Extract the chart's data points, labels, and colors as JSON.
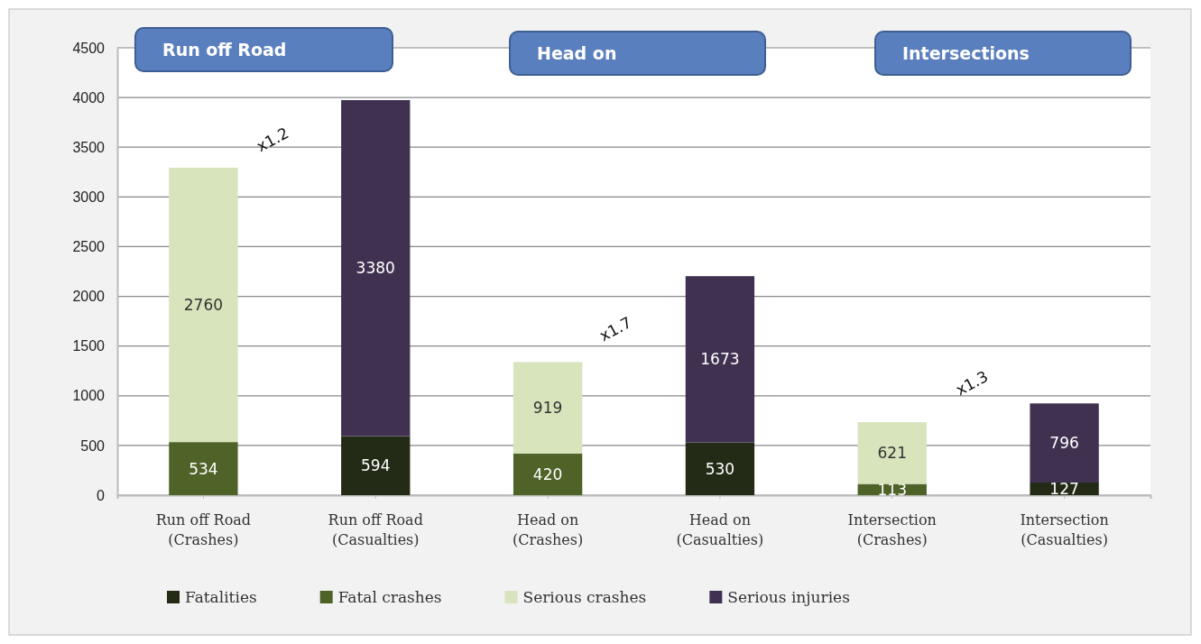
{
  "chart_data": {
    "type": "bar",
    "stacked": true,
    "categories": [
      "Run off Road (Crashes)",
      "Run off Road (Casualties)",
      "Head on (Crashes)",
      "Head on (Casualties)",
      "Intersection (Crashes)",
      "Intersection (Casualties)"
    ],
    "series": [
      {
        "name": "Fatalities",
        "color": "#232b17",
        "values": [
          null,
          594,
          null,
          530,
          null,
          127
        ]
      },
      {
        "name": "Fatal crashes",
        "color": "#4f6228",
        "values": [
          534,
          null,
          420,
          null,
          113,
          null
        ]
      },
      {
        "name": "Serious crashes",
        "color": "#d7e4bc",
        "values": [
          2760,
          null,
          919,
          null,
          621,
          null
        ]
      },
      {
        "name": "Serious injuries",
        "color": "#403151",
        "values": [
          null,
          3380,
          null,
          1673,
          null,
          796
        ]
      }
    ],
    "ylim": [
      0,
      4500
    ],
    "yticks": [
      0,
      500,
      1000,
      1500,
      2000,
      2500,
      3000,
      3500,
      4000,
      4500
    ],
    "grid": "y",
    "legend": "bottom",
    "data_labels": true,
    "annotations": [
      "Run off Road",
      "Head on",
      "Intersections",
      "x1.2",
      "x1.7",
      "x1.3"
    ]
  }
}
